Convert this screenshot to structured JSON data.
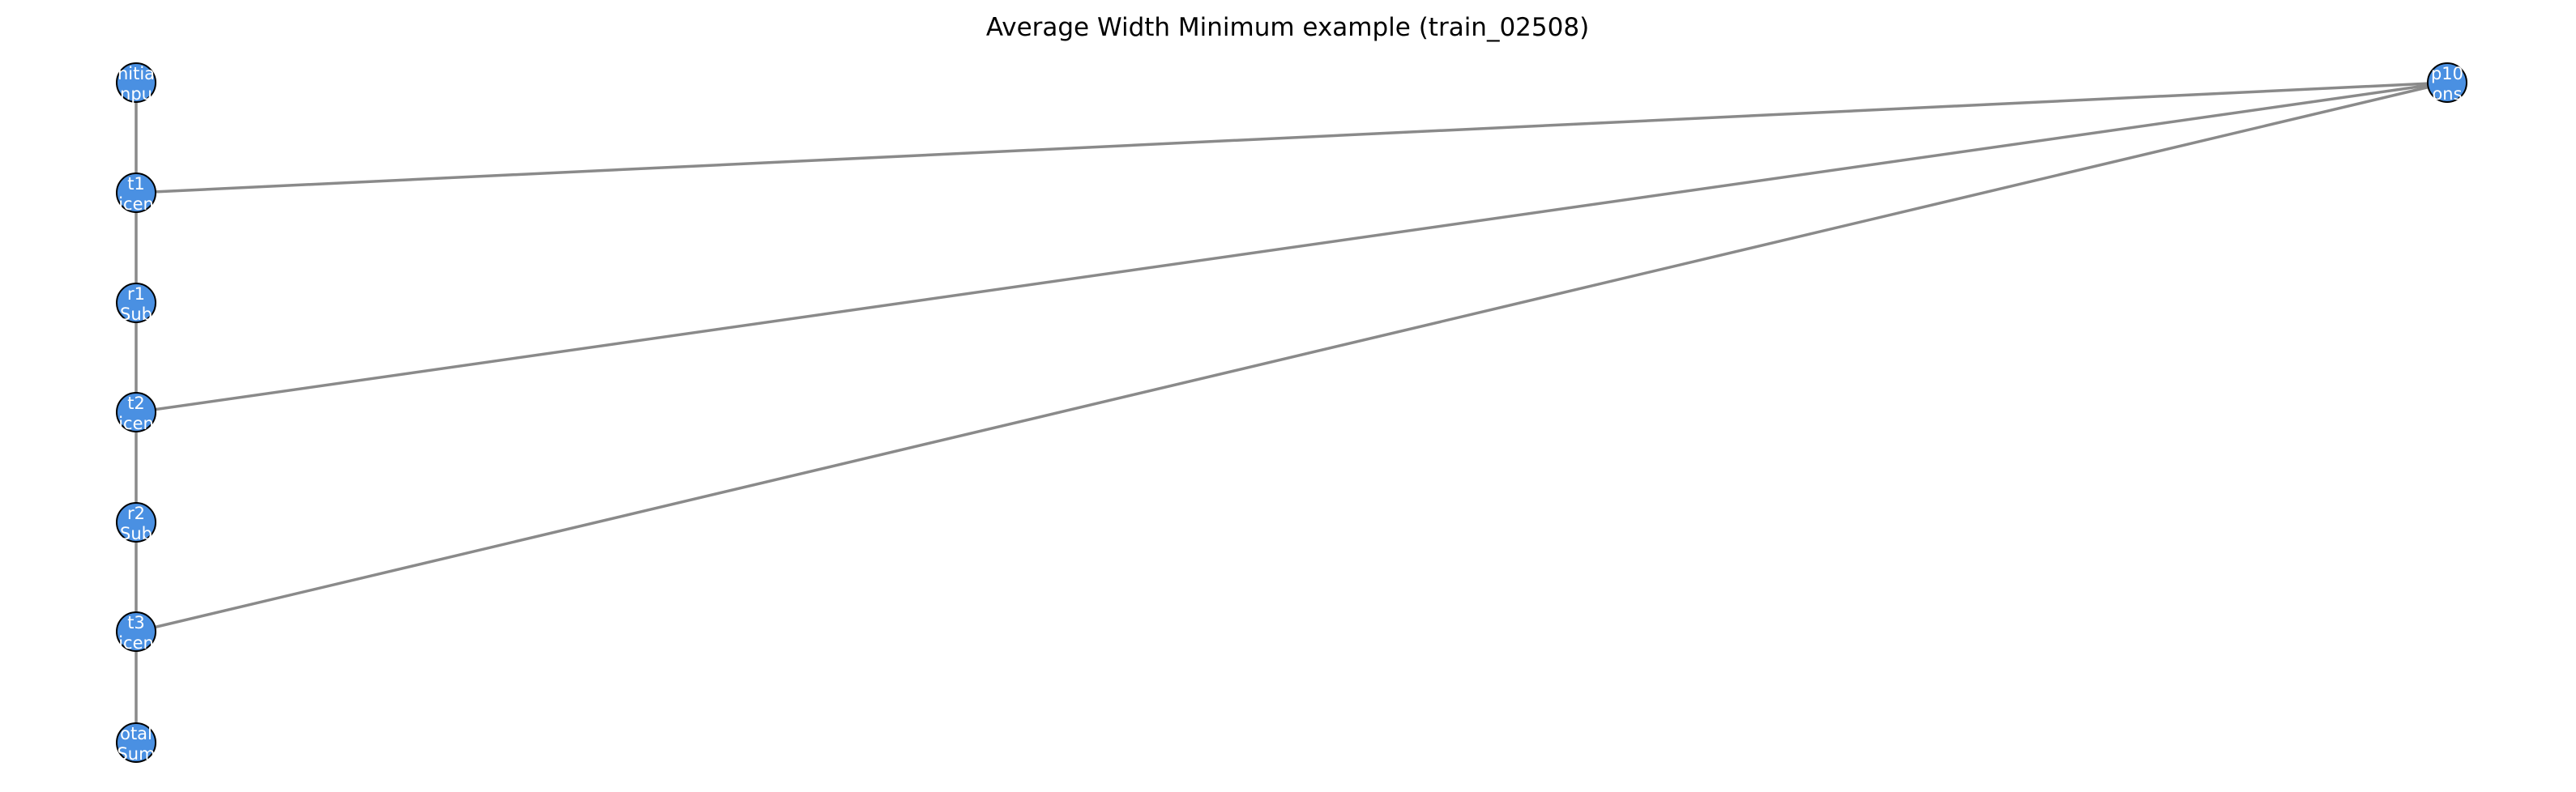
{
  "title": "Average Width Minimum example (train_02508)",
  "colors": {
    "node_fill": "#4a90e2",
    "node_stroke": "#000000",
    "edge": "#8a8a8a",
    "label": "#ffffff"
  },
  "nodes": [
    {
      "id": "initial",
      "lines": [
        "nitia",
        "npu"
      ]
    },
    {
      "id": "t1",
      "lines": [
        "t1",
        "icen"
      ]
    },
    {
      "id": "r1",
      "lines": [
        "r1",
        "Sub"
      ]
    },
    {
      "id": "t2",
      "lines": [
        "t2",
        "icen"
      ]
    },
    {
      "id": "r2",
      "lines": [
        "r2",
        "Sub"
      ]
    },
    {
      "id": "t3",
      "lines": [
        "t3",
        "icen"
      ]
    },
    {
      "id": "total",
      "lines": [
        "otal",
        "Sum"
      ]
    },
    {
      "id": "p10",
      "lines": [
        "p10",
        "ons"
      ]
    }
  ],
  "edges": [
    [
      "initial",
      "t1"
    ],
    [
      "t1",
      "r1"
    ],
    [
      "r1",
      "t2"
    ],
    [
      "t2",
      "r2"
    ],
    [
      "r2",
      "t3"
    ],
    [
      "t3",
      "total"
    ],
    [
      "t1",
      "p10"
    ],
    [
      "t2",
      "p10"
    ],
    [
      "t3",
      "p10"
    ]
  ]
}
